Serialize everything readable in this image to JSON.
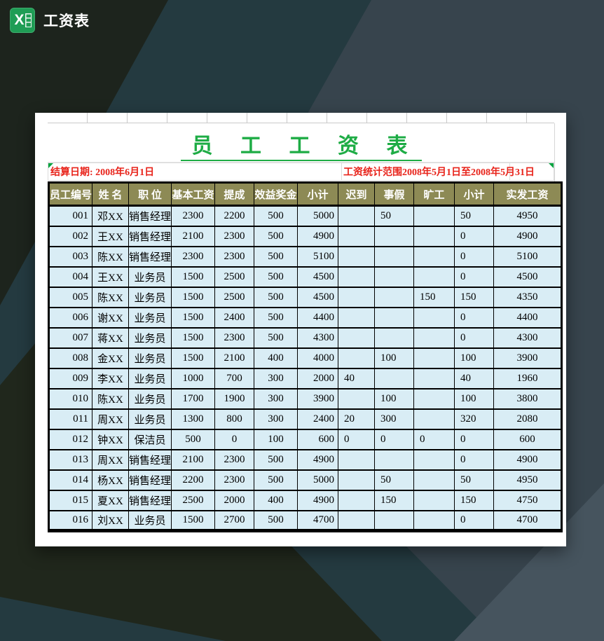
{
  "window": {
    "title": "工资表"
  },
  "icon": {
    "letter": "X"
  },
  "sheet": {
    "title": "员 工 工 资 表",
    "info": {
      "settle_date": "结算日期: 2008年6月1日",
      "stat_range": "工资统计范围2008年5月1日至2008年5月31日"
    },
    "columns": [
      "员工编号",
      "姓 名",
      "职 位",
      "基本工资",
      "提成",
      "效益奖金",
      "小计",
      "迟到",
      "事假",
      "旷工",
      "小计",
      "实发工资"
    ],
    "rows": [
      [
        "001",
        "邓XX",
        "销售经理",
        "2300",
        "2200",
        "500",
        "5000",
        "",
        "50",
        "",
        "50",
        "4950"
      ],
      [
        "002",
        "王XX",
        "销售经理",
        "2100",
        "2300",
        "500",
        "4900",
        "",
        "",
        "",
        "0",
        "4900"
      ],
      [
        "003",
        "陈XX",
        "销售经理",
        "2300",
        "2300",
        "500",
        "5100",
        "",
        "",
        "",
        "0",
        "5100"
      ],
      [
        "004",
        "王XX",
        "业务员",
        "1500",
        "2500",
        "500",
        "4500",
        "",
        "",
        "",
        "0",
        "4500"
      ],
      [
        "005",
        "陈XX",
        "业务员",
        "1500",
        "2500",
        "500",
        "4500",
        "",
        "",
        "150",
        "150",
        "4350"
      ],
      [
        "006",
        "谢XX",
        "业务员",
        "1500",
        "2400",
        "500",
        "4400",
        "",
        "",
        "",
        "0",
        "4400"
      ],
      [
        "007",
        "蒋XX",
        "业务员",
        "1500",
        "2300",
        "500",
        "4300",
        "",
        "",
        "",
        "0",
        "4300"
      ],
      [
        "008",
        "金XX",
        "业务员",
        "1500",
        "2100",
        "400",
        "4000",
        "",
        "100",
        "",
        "100",
        "3900"
      ],
      [
        "009",
        "李XX",
        "业务员",
        "1000",
        "700",
        "300",
        "2000",
        "40",
        "",
        "",
        "40",
        "1960"
      ],
      [
        "010",
        "陈XX",
        "业务员",
        "1700",
        "1900",
        "300",
        "3900",
        "",
        "100",
        "",
        "100",
        "3800"
      ],
      [
        "011",
        "周XX",
        "业务员",
        "1300",
        "800",
        "300",
        "2400",
        "20",
        "300",
        "",
        "320",
        "2080"
      ],
      [
        "012",
        "钟XX",
        "保洁员",
        "500",
        "0",
        "100",
        "600",
        "0",
        "0",
        "0",
        "0",
        "600"
      ],
      [
        "013",
        "周XX",
        "销售经理",
        "2100",
        "2300",
        "500",
        "4900",
        "",
        "",
        "",
        "0",
        "4900"
      ],
      [
        "014",
        "杨XX",
        "销售经理",
        "2200",
        "2300",
        "500",
        "5000",
        "",
        "50",
        "",
        "50",
        "4950"
      ],
      [
        "015",
        "夏XX",
        "销售经理",
        "2500",
        "2000",
        "400",
        "4900",
        "",
        "150",
        "",
        "150",
        "4750"
      ],
      [
        "016",
        "刘XX",
        "业务员",
        "1500",
        "2700",
        "500",
        "4700",
        "",
        "",
        "",
        "0",
        "4700"
      ]
    ]
  },
  "colors": {
    "header_bg": "#8d8a55",
    "cell_bg": "#d9edf5",
    "title_green": "#1eac45",
    "info_red": "#e8231a",
    "comment_green": "#00a33e",
    "background_slate": "#37444d",
    "background_teal": "#243a40",
    "background_dark": "#1d241d"
  }
}
